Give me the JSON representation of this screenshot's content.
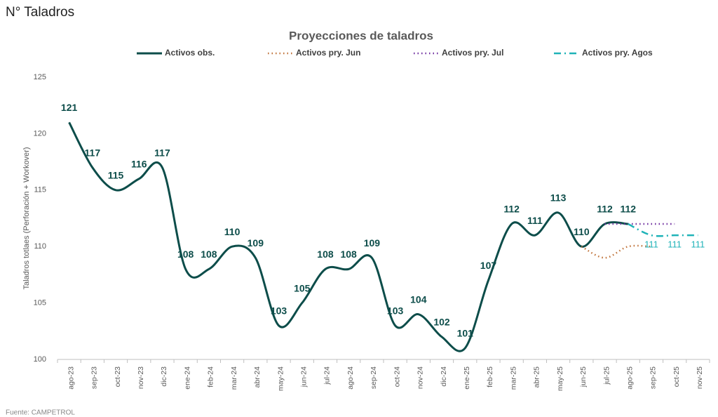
{
  "page_title": "N° Taladros",
  "source": "Fuente: CAMPETROL",
  "chart_data": {
    "type": "line",
    "title": "Proyecciones de taladros",
    "y_label": "Taladros totlaes (Perforación + Workover)",
    "categories": [
      "ago-23",
      "sep-23",
      "oct-23",
      "nov-23",
      "dic-23",
      "ene-24",
      "feb-24",
      "mar-24",
      "abr-24",
      "may-24",
      "jun-24",
      "jul-24",
      "ago-24",
      "sep-24",
      "oct-24",
      "nov-24",
      "dic-24",
      "ene-25",
      "feb-25",
      "mar-25",
      "abr-25",
      "may-25",
      "jun-25",
      "jul-25",
      "ago-25",
      "sep-25",
      "oct-25",
      "nov-25"
    ],
    "series": [
      {
        "name": "Activos obs.",
        "color": "#0d4d4a",
        "dash": "solid",
        "values": [
          121,
          117,
          115,
          116,
          117,
          108,
          108,
          110,
          109,
          103,
          105,
          108,
          108,
          109,
          103,
          104,
          102,
          101,
          107,
          112,
          111,
          113,
          110,
          112,
          112,
          null,
          null,
          null
        ]
      },
      {
        "name": "Activos pry. Jun",
        "color": "#c0733a",
        "dash": "dotted",
        "values": [
          null,
          null,
          null,
          null,
          null,
          null,
          null,
          null,
          null,
          null,
          null,
          null,
          null,
          null,
          null,
          null,
          null,
          null,
          null,
          null,
          null,
          null,
          110,
          109,
          110,
          110,
          null,
          null
        ]
      },
      {
        "name": "Activos pry. Jul",
        "color": "#7030a0",
        "dash": "dotted",
        "values": [
          null,
          null,
          null,
          null,
          null,
          null,
          null,
          null,
          null,
          null,
          null,
          null,
          null,
          null,
          null,
          null,
          null,
          null,
          null,
          null,
          null,
          null,
          null,
          112,
          112,
          112,
          112,
          null
        ]
      },
      {
        "name": "Activos pry. Agos",
        "color": "#1fb3b8",
        "dash": "dashdot",
        "values": [
          null,
          null,
          null,
          null,
          null,
          null,
          null,
          null,
          null,
          null,
          null,
          null,
          null,
          null,
          null,
          null,
          null,
          null,
          null,
          null,
          null,
          null,
          null,
          null,
          112,
          111,
          111,
          111
        ]
      }
    ],
    "ylim": [
      100,
      125
    ],
    "yticks": [
      100,
      105,
      110,
      115,
      120,
      125
    ],
    "grid": false
  }
}
